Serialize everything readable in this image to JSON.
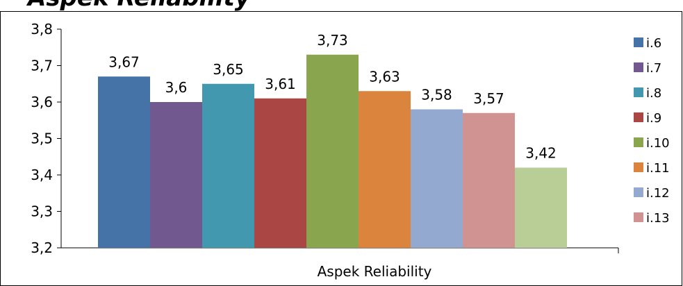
{
  "title_partial": "Aspek Reliability",
  "chart_data": {
    "type": "bar",
    "xlabel": "Aspek Reliability",
    "categories": [
      "Aspek Reliability"
    ],
    "ylim": [
      3.2,
      3.8
    ],
    "yticks": [
      "3,2",
      "3,3",
      "3,4",
      "3,5",
      "3,6",
      "3,7",
      "3,8"
    ],
    "ytick_values": [
      3.2,
      3.3,
      3.4,
      3.5,
      3.6,
      3.7,
      3.8
    ],
    "grid": false,
    "legend_position": "right",
    "series": [
      {
        "name": "i.6",
        "value": 3.67,
        "label": "3,67",
        "color": "#4572A7"
      },
      {
        "name": "i.7",
        "value": 3.6,
        "label": "3,6",
        "color": "#71588F"
      },
      {
        "name": "i.8",
        "value": 3.65,
        "label": "3,65",
        "color": "#4198AF"
      },
      {
        "name": "i.9",
        "value": 3.61,
        "label": "3,61",
        "color": "#AA4643"
      },
      {
        "name": "i.10",
        "value": 3.73,
        "label": "3,73",
        "color": "#89A54E"
      },
      {
        "name": "i.11",
        "value": 3.63,
        "label": "3,63",
        "color": "#DB843D"
      },
      {
        "name": "i.12",
        "value": 3.58,
        "label": "3,58",
        "color": "#93A9CF"
      },
      {
        "name": "i.13",
        "value": 3.57,
        "label": "3,57",
        "color": "#D19392"
      },
      {
        "name": "",
        "value": 3.42,
        "label": "3,42",
        "color": "#B9CD96"
      }
    ],
    "legend": [
      "i.6",
      "i.7",
      "i.8",
      "i.9",
      "i.10",
      "i.11",
      "i.12",
      "i.13"
    ]
  }
}
